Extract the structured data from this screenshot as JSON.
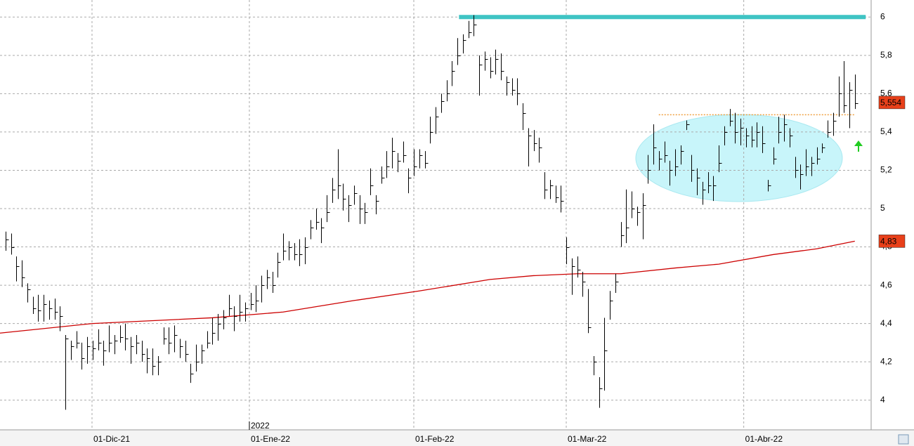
{
  "chart_data": {
    "type": "ohlc",
    "xlim": [
      -1,
      159
    ],
    "ylim": [
      3.845,
      6.089
    ],
    "yticks": [
      4,
      {
        "value": 4.2,
        "label": "4,2"
      },
      {
        "value": 4.4,
        "label": "4,4"
      },
      {
        "value": 4.6,
        "label": "4,6"
      },
      {
        "value": 4.8,
        "label": "4,8"
      },
      5,
      {
        "value": 5.2,
        "label": "5,2"
      },
      {
        "value": 5.4,
        "label": "5,4"
      },
      {
        "value": 5.6,
        "label": "5,6"
      },
      {
        "value": 5.8,
        "label": "5,8"
      },
      6
    ],
    "xticks": [
      {
        "value": 15.9,
        "label": "01-Dic-21"
      },
      {
        "value": 44.8,
        "label": "01-Ene-22"
      },
      {
        "value": 75,
        "label": "01-Feb-22"
      },
      {
        "value": 103,
        "label": "01-Mar-22"
      },
      {
        "value": 135.6,
        "label": "01-Abr-22"
      }
    ],
    "year_marker": {
      "value": 44.8,
      "label": "2022"
    },
    "grid": true,
    "bars": {
      "color": "#000000",
      "high": [
        4.88,
        4.87,
        4.75,
        4.73,
        4.61,
        4.54,
        4.55,
        4.55,
        4.52,
        4.53,
        4.49,
        4.34,
        4.31,
        4.36,
        4.3,
        4.33,
        4.31,
        4.37,
        4.31,
        4.39,
        4.34,
        4.39,
        4.4,
        4.33,
        4.34,
        4.31,
        4.27,
        4.27,
        4.23,
        4.38,
        4.38,
        4.39,
        4.32,
        4.31,
        4.19,
        4.29,
        4.29,
        4.36,
        4.43,
        4.45,
        4.47,
        4.55,
        4.49,
        4.55,
        4.51,
        4.56,
        4.6,
        4.65,
        4.68,
        4.67,
        4.77,
        4.87,
        4.83,
        4.82,
        4.84,
        4.85,
        4.94,
        5.0,
        4.95,
        5.07,
        5.16,
        5.31,
        5.13,
        5.07,
        5.12,
        5.07,
        5.03,
        5.21,
        5.07,
        5.22,
        5.3,
        5.37,
        5.29,
        5.35,
        5.21,
        5.31,
        5.31,
        5.3,
        5.48,
        5.53,
        5.6,
        5.67,
        5.77,
        5.89,
        5.91,
        5.98,
        6.01,
        5.8,
        5.82,
        5.79,
        5.83,
        5.81,
        5.69,
        5.68,
        5.68,
        5.55,
        5.42,
        5.41,
        5.37,
        5.19,
        5.15,
        5.12,
        5.12,
        4.85,
        4.74,
        4.75,
        4.67,
        4.58,
        4.23,
        4.12,
        4.43,
        4.57,
        4.66,
        4.93,
        5.1,
        5.09,
        5.01,
        5.08,
        5.28,
        5.44,
        5.3,
        5.35,
        5.25,
        5.31,
        5.33,
        5.46,
        5.28,
        5.21,
        5.14,
        5.19,
        5.17,
        5.33,
        5.43,
        5.52,
        5.5,
        5.47,
        5.42,
        5.43,
        5.45,
        5.43,
        5.15,
        5.32,
        5.48,
        5.49,
        5.42,
        5.27,
        5.23,
        5.31,
        5.27,
        5.32,
        5.34,
        5.46,
        5.5,
        5.69,
        5.77,
        5.66,
        5.7
      ],
      "low": [
        4.78,
        4.76,
        4.62,
        4.59,
        4.51,
        4.45,
        4.41,
        4.41,
        4.42,
        4.42,
        4.36,
        3.95,
        4.21,
        4.27,
        4.16,
        4.19,
        4.21,
        4.26,
        4.18,
        4.25,
        4.24,
        4.3,
        4.26,
        4.19,
        4.24,
        4.2,
        4.14,
        4.13,
        4.13,
        4.29,
        4.24,
        4.25,
        4.22,
        4.2,
        4.09,
        4.15,
        4.19,
        4.27,
        4.29,
        4.31,
        4.37,
        4.44,
        4.36,
        4.41,
        4.41,
        4.47,
        4.46,
        4.51,
        4.58,
        4.56,
        4.64,
        4.73,
        4.73,
        4.73,
        4.7,
        4.71,
        4.84,
        4.89,
        4.82,
        4.93,
        5.03,
        5.05,
        4.99,
        4.93,
        5.02,
        4.92,
        4.92,
        5.07,
        4.97,
        5.13,
        5.16,
        5.21,
        5.19,
        5.24,
        5.08,
        5.17,
        5.21,
        5.21,
        5.34,
        5.39,
        5.5,
        5.56,
        5.64,
        5.75,
        5.81,
        5.89,
        5.9,
        5.59,
        5.72,
        5.68,
        5.7,
        5.67,
        5.59,
        5.59,
        5.54,
        5.41,
        5.22,
        5.3,
        5.24,
        5.05,
        5.05,
        5.03,
        4.98,
        4.71,
        4.55,
        4.64,
        4.54,
        4.35,
        4.13,
        3.96,
        4.05,
        4.42,
        4.56,
        4.8,
        4.82,
        4.95,
        4.91,
        4.84,
        5.13,
        5.23,
        5.2,
        5.24,
        5.12,
        5.17,
        5.23,
        5.41,
        5.14,
        5.07,
        5.02,
        5.08,
        5.04,
        5.19,
        5.33,
        5.43,
        5.34,
        5.33,
        5.32,
        5.32,
        5.32,
        5.29,
        5.09,
        5.23,
        5.34,
        5.35,
        5.32,
        5.16,
        5.1,
        5.17,
        5.17,
        5.23,
        5.29,
        5.37,
        5.38,
        5.48,
        5.5,
        5.42,
        5.52
      ],
      "close": [
        4.84,
        4.8,
        4.7,
        4.64,
        4.58,
        4.48,
        4.47,
        4.5,
        4.48,
        4.46,
        4.44,
        4.32,
        4.28,
        4.3,
        4.22,
        4.28,
        4.27,
        4.3,
        4.26,
        4.3,
        4.31,
        4.33,
        4.32,
        4.28,
        4.3,
        4.24,
        4.22,
        4.18,
        4.2,
        4.32,
        4.3,
        4.34,
        4.28,
        4.24,
        4.14,
        4.2,
        4.26,
        4.3,
        4.35,
        4.4,
        4.43,
        4.48,
        4.44,
        4.46,
        4.48,
        4.5,
        4.52,
        4.6,
        4.64,
        4.6,
        4.72,
        4.78,
        4.8,
        4.76,
        4.76,
        4.8,
        4.9,
        4.93,
        4.9,
        4.98,
        5.1,
        5.12,
        5.05,
        5.02,
        5.08,
        5.0,
        4.98,
        5.12,
        5.04,
        5.16,
        5.22,
        5.3,
        5.25,
        5.28,
        5.16,
        5.22,
        5.28,
        5.24,
        5.4,
        5.48,
        5.56,
        5.6,
        5.72,
        5.8,
        5.88,
        5.92,
        5.96,
        5.75,
        5.78,
        5.72,
        5.78,
        5.72,
        5.66,
        5.62,
        5.6,
        5.5,
        5.38,
        5.34,
        5.32,
        5.1,
        5.12,
        5.06,
        5.04,
        4.8,
        4.7,
        4.68,
        4.62,
        4.38,
        4.2,
        4.06,
        4.26,
        4.52,
        4.62,
        4.86,
        4.9,
        5.0,
        4.98,
        5.02,
        5.2,
        5.32,
        5.26,
        5.28,
        5.2,
        5.22,
        5.3,
        5.44,
        5.2,
        5.16,
        5.1,
        5.12,
        5.12,
        5.24,
        5.4,
        5.46,
        5.4,
        5.42,
        5.38,
        5.36,
        5.4,
        5.34,
        5.12,
        5.26,
        5.4,
        5.44,
        5.38,
        5.2,
        5.18,
        5.22,
        5.24,
        5.26,
        5.32,
        5.4,
        5.46,
        5.6,
        5.54,
        5.62,
        5.55
      ]
    },
    "moving_average": {
      "color": "#cc0000",
      "x": [
        -1,
        16,
        38,
        51,
        64,
        76,
        89,
        97,
        105,
        113,
        123,
        131,
        141,
        149,
        156
      ],
      "values": [
        4.35,
        4.4,
        4.43,
        4.46,
        4.52,
        4.57,
        4.63,
        4.65,
        4.66,
        4.66,
        4.69,
        4.71,
        4.76,
        4.79,
        4.83
      ]
    },
    "hlines": [
      {
        "value": 6,
        "color": "#3fc4c4",
        "from": 83.3,
        "to": 158
      },
      {
        "value": 5.49,
        "color": "#f0a040",
        "from": 120,
        "to": 156
      }
    ],
    "price_labels": [
      {
        "value": 5.554,
        "label": "5,554",
        "color": "#e8401a"
      },
      {
        "value": 4.83,
        "label": "4,83",
        "color": "#e8401a"
      }
    ]
  }
}
